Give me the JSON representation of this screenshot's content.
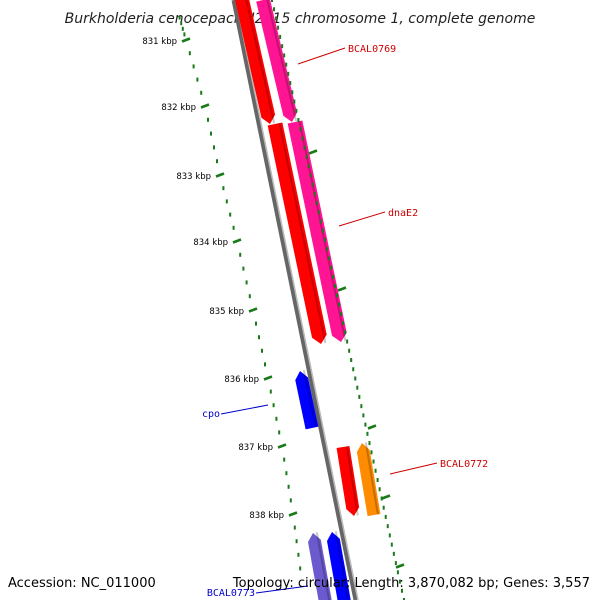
{
  "title": "Burkholderia cenocepacia J2315 chromosome 1, complete genome",
  "footer": {
    "accession": "Accession: NC_011000",
    "summary": "Topology: circular; Length: 3,870,082 bp; Genes: 3,557"
  },
  "colors": {
    "tick": "#1a7a1a",
    "backbone": "#888888",
    "gene_red": "#ff0000",
    "gene_pink": "#ff1493",
    "gene_blue": "#0000ff",
    "gene_orange": "#ff8c00",
    "gene_slate": "#6a5acd",
    "label_red": "#cc0000",
    "label_blue": "#0000cc"
  },
  "kbp_ticks": [
    "831 kbp",
    "832 kbp",
    "833 kbp",
    "834 kbp",
    "835 kbp",
    "836 kbp",
    "837 kbp",
    "838 kbp"
  ],
  "gene_labels": [
    {
      "text": "BCAL0769",
      "color": "label_red"
    },
    {
      "text": "dnaE2",
      "color": "label_red"
    },
    {
      "text": "cpo",
      "color": "label_blue"
    },
    {
      "text": "BCAL0772",
      "color": "label_red"
    },
    {
      "text": "BCAL0773",
      "color": "label_blue"
    }
  ]
}
